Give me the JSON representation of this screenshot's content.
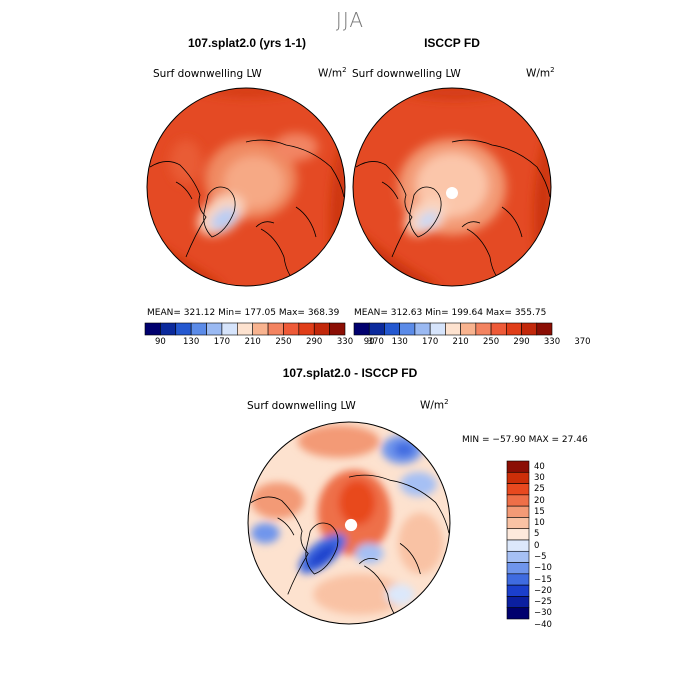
{
  "page": {
    "season": "JJA"
  },
  "panel_model": {
    "title": "107.splat2.0 (yrs 1-1)",
    "variable": "Surf downwelling LW",
    "units_base": "W/m",
    "units_exp": "2",
    "stats": "MEAN= 321.12   Min= 177.05   Max= 368.39"
  },
  "panel_obs": {
    "title": "ISCCP FD",
    "variable": "Surf downwelling LW",
    "units_base": "W/m",
    "units_exp": "2",
    "stats": "MEAN= 312.63   Min= 199.64   Max= 355.75"
  },
  "panel_diff": {
    "title": "107.splat2.0 - ISCCP FD",
    "variable": "Surf downwelling LW",
    "units_base": "W/m",
    "units_exp": "2",
    "stats": "MIN = −57.90 MAX =  27.46"
  },
  "colors": {
    "abs_scale": [
      "#00006e",
      "#0b2a9c",
      "#2458d0",
      "#5b8be8",
      "#9ab9f2",
      "#d6e4fb",
      "#fde2cf",
      "#f8b38f",
      "#f38360",
      "#ee5a38",
      "#e03d18",
      "#c2280b",
      "#8b0e04"
    ],
    "diff_scale": [
      "#00006e",
      "#0b1fa0",
      "#1b3fcc",
      "#3f6be0",
      "#6f95ec",
      "#a6c0f4",
      "#dce8fb",
      "#fde9dc",
      "#f9c2a4",
      "#f39a76",
      "#ee6f48",
      "#e8491f",
      "#cc2e08",
      "#8b0e04"
    ],
    "coast": "#000000"
  },
  "chart_data": [
    {
      "type": "heatmap",
      "projection": "north polar stereographic",
      "title": "107.splat2.0 (yrs 1-1)",
      "variable": "Surf downwelling LW",
      "units": "W/m2",
      "mean": 321.12,
      "min": 177.05,
      "max": 368.39,
      "colorbar_ticks": [
        "90",
        "130",
        "170",
        "210",
        "250",
        "290",
        "330",
        "370"
      ]
    },
    {
      "type": "heatmap",
      "projection": "north polar stereographic",
      "title": "ISCCP FD",
      "variable": "Surf downwelling LW",
      "units": "W/m2",
      "mean": 312.63,
      "min": 199.64,
      "max": 355.75,
      "colorbar_ticks": [
        "90",
        "130",
        "170",
        "210",
        "250",
        "290",
        "330",
        "370"
      ]
    },
    {
      "type": "heatmap",
      "projection": "north polar stereographic",
      "title": "107.splat2.0 - ISCCP FD",
      "variable": "Surf downwelling LW",
      "units": "W/m2",
      "min": -57.9,
      "max": 27.46,
      "colorbar_ticks": [
        "40",
        "30",
        "25",
        "20",
        "15",
        "10",
        "5",
        "0",
        "−5",
        "−10",
        "−15",
        "−20",
        "−25",
        "−30",
        "−40"
      ]
    }
  ]
}
